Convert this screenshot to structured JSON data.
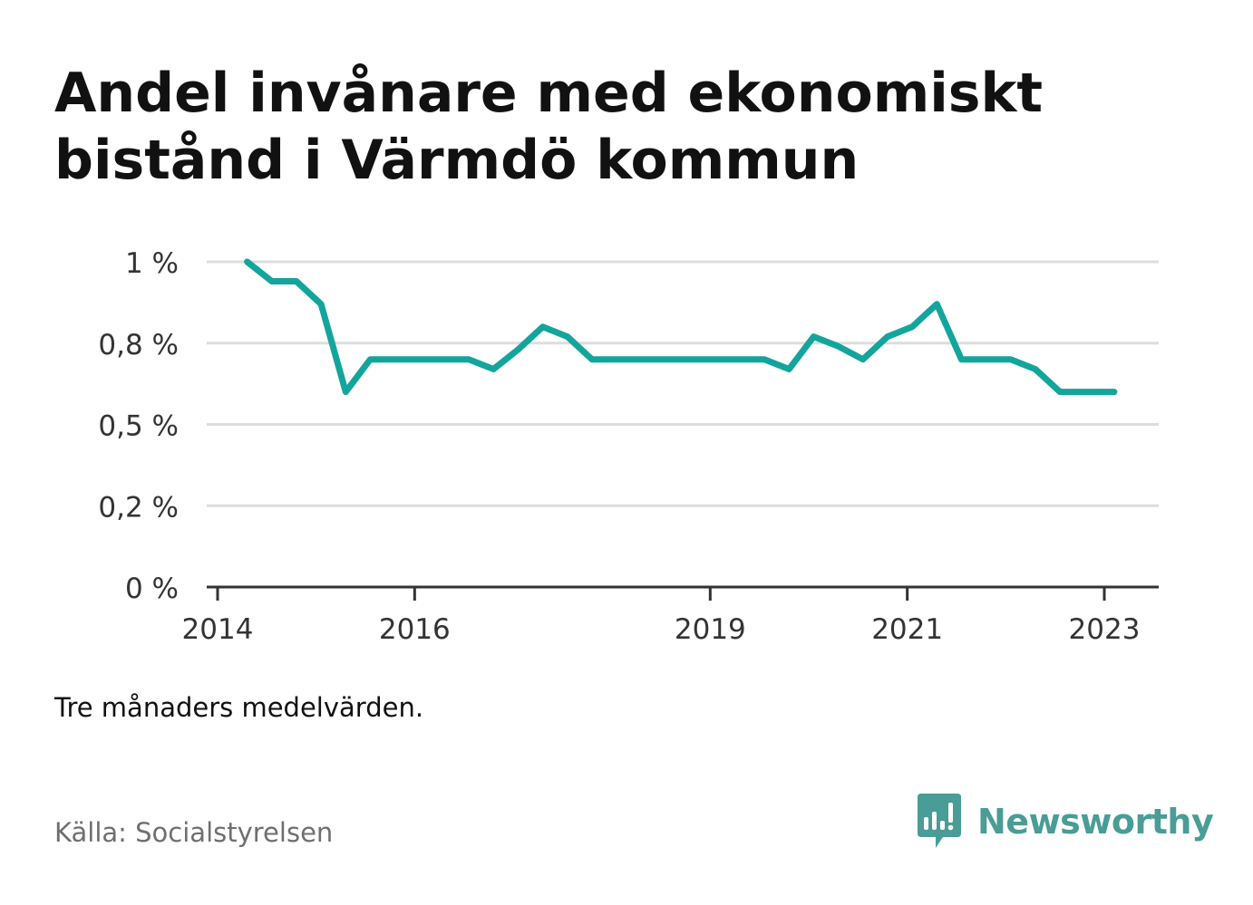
{
  "title": "Andel invånare med ekonomiskt bistånd i Värmdö kommun",
  "note": "Tre månaders medelvärden.",
  "source": "Källa: Socialstyrelsen",
  "brand": {
    "name": "Newsworthy",
    "color": "#4a9c96"
  },
  "colors": {
    "line": "#13a59c",
    "grid": "#dddddd",
    "axis": "#333333"
  },
  "chart_data": {
    "type": "line",
    "title": "Andel invånare med ekonomiskt bistånd i Värmdö kommun",
    "xlabel": "",
    "ylabel": "",
    "ylim": [
      0,
      1.0
    ],
    "xlim": [
      2014.0,
      2023.6
    ],
    "grid": true,
    "y_ticks": [
      {
        "value": 0,
        "label": "0 %"
      },
      {
        "value": 0.25,
        "label": "0,2 %"
      },
      {
        "value": 0.5,
        "label": "0,5 %"
      },
      {
        "value": 0.75,
        "label": "0,8 %"
      },
      {
        "value": 1.0,
        "label": "1 %"
      }
    ],
    "x_ticks": [
      {
        "value": 2014.0,
        "label": "2014"
      },
      {
        "value": 2016.0,
        "label": "2016"
      },
      {
        "value": 2019.0,
        "label": "2019"
      },
      {
        "value": 2021.0,
        "label": "2021"
      },
      {
        "value": 2023.0,
        "label": "2023"
      }
    ],
    "series": [
      {
        "x": [
          2014.3,
          2014.55,
          2014.8,
          2015.05,
          2015.3,
          2015.55,
          2015.8,
          2016.05,
          2016.3,
          2016.55,
          2016.8,
          2017.05,
          2017.3,
          2017.55,
          2017.8,
          2018.05,
          2018.3,
          2018.55,
          2018.8,
          2019.05,
          2019.3,
          2019.55,
          2019.8,
          2020.05,
          2020.3,
          2020.55,
          2020.8,
          2021.05,
          2021.3,
          2021.55,
          2021.8,
          2022.05,
          2022.3,
          2022.55,
          2022.8,
          2023.05,
          2023.1
        ],
        "values": [
          1.0,
          0.94,
          0.94,
          0.87,
          0.6,
          0.7,
          0.7,
          0.7,
          0.7,
          0.7,
          0.67,
          0.73,
          0.8,
          0.77,
          0.7,
          0.7,
          0.7,
          0.7,
          0.7,
          0.7,
          0.7,
          0.7,
          0.67,
          0.77,
          0.74,
          0.7,
          0.77,
          0.8,
          0.87,
          0.7,
          0.7,
          0.7,
          0.67,
          0.6,
          0.6,
          0.6,
          0.6
        ]
      }
    ]
  }
}
